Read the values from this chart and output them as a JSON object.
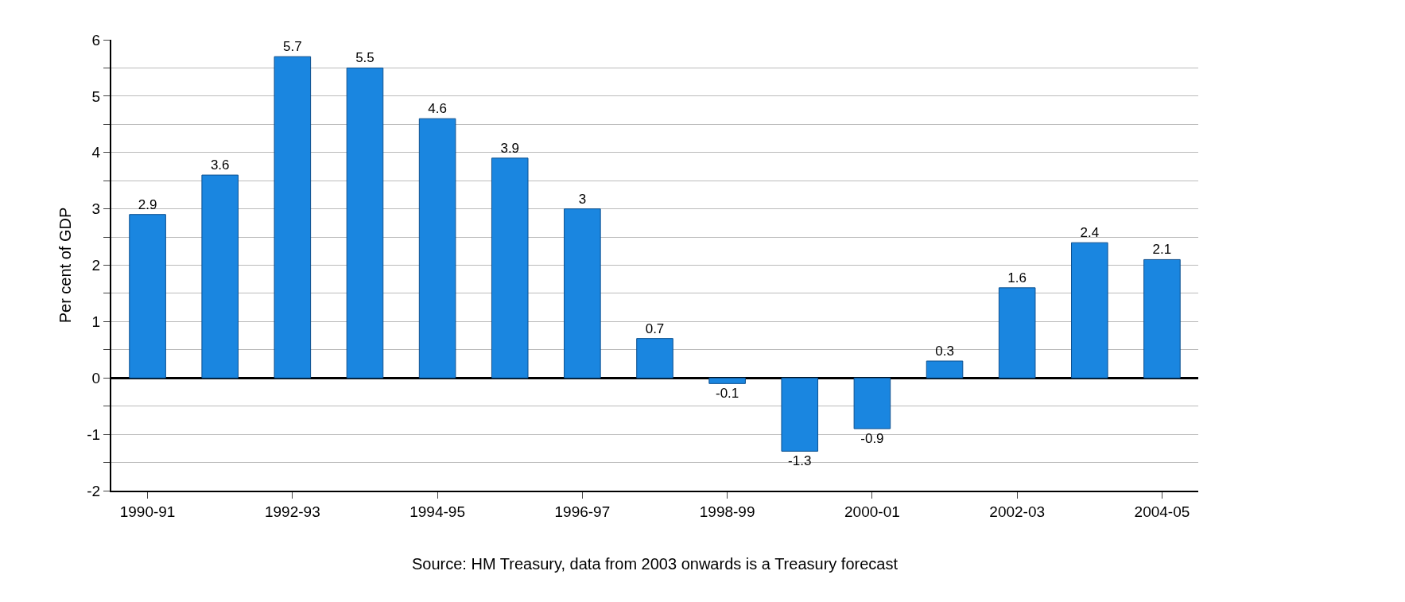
{
  "chart_data": {
    "type": "bar",
    "ylabel": "Per cent of GDP",
    "categories": [
      "1990-91",
      null,
      "1992-93",
      null,
      "1994-95",
      null,
      "1996-97",
      null,
      "1998-99",
      null,
      "2000-01",
      null,
      "2002-03",
      null,
      "2004-05"
    ],
    "values": [
      2.9,
      3.6,
      5.7,
      5.5,
      4.6,
      3.9,
      3,
      0.7,
      -0.1,
      -1.3,
      -0.9,
      0.3,
      1.6,
      2.4,
      2.1
    ],
    "color": "#1a86e0",
    "ylim": [
      -2,
      6
    ],
    "yticks": [
      -2,
      {
        "value": -1.5,
        "label": null
      },
      -1,
      {
        "value": -0.5,
        "label": null
      },
      0,
      {
        "value": 0.5,
        "label": null
      },
      1,
      {
        "value": 1.5,
        "label": null
      },
      2,
      {
        "value": 2.5,
        "label": null
      },
      3,
      {
        "value": 3.5,
        "label": null
      },
      4,
      {
        "value": 4.5,
        "label": null
      },
      5,
      {
        "value": 5.5,
        "label": null
      },
      6
    ],
    "grid": "y",
    "data_labels": true,
    "annotations": [
      "Source: HM Treasury, data from 2003 onwards is a Treasury forecast"
    ]
  }
}
